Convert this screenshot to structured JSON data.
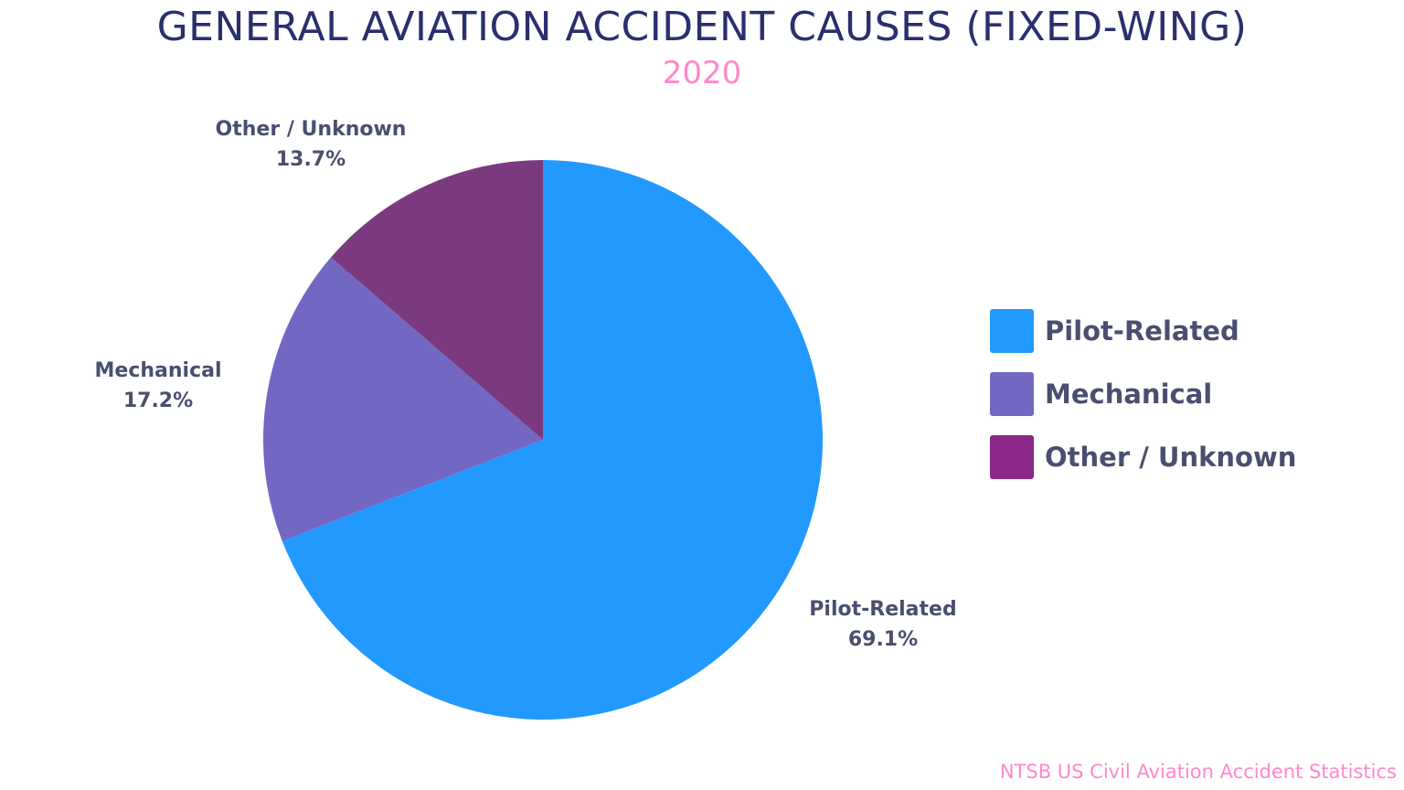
{
  "chart_data": {
    "type": "pie",
    "title": "GENERAL AVIATION ACCIDENT CAUSES (FIXED-WING)",
    "subtitle": "2020",
    "source": "NTSB US Civil Aviation Accident Statistics",
    "legend_position": "right",
    "slices": [
      {
        "name": "Pilot-Related",
        "value": 69.1,
        "label": "69.1%",
        "color": "#2299ff",
        "legend_color": "#2299ff"
      },
      {
        "name": "Mechanical",
        "value": 17.2,
        "label": "17.2%",
        "color": "#7367c4",
        "legend_color": "#7367c4"
      },
      {
        "name": "Other / Unknown",
        "value": 13.7,
        "label": "13.7%",
        "color": "#7b3a80",
        "legend_color": "#8b2789"
      }
    ]
  }
}
